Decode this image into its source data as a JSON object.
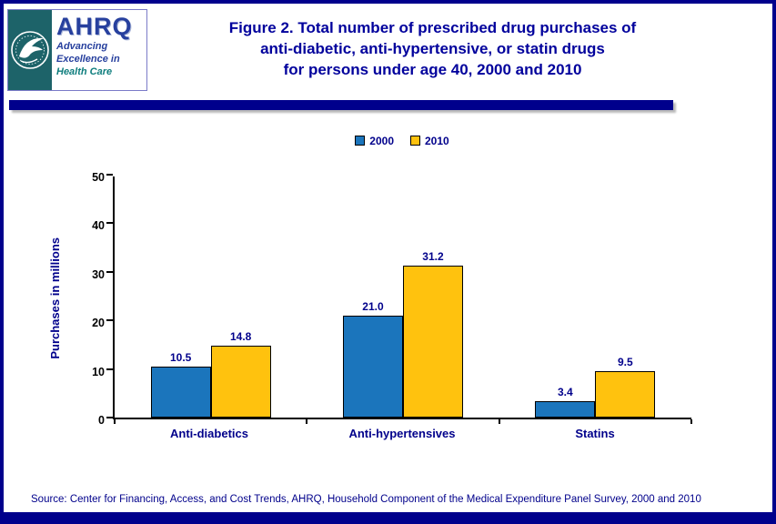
{
  "header": {
    "logo": {
      "org_abbrev": "AHRQ",
      "tagline": [
        "Advancing",
        "Excellence in",
        "Health Care"
      ]
    },
    "title_lines": [
      "Figure 2. Total number of prescribed drug purchases of",
      "anti-diabetic, anti-hypertensive, or statin drugs",
      "for persons under age 40, 2000 and 2010"
    ]
  },
  "chart_data": {
    "type": "bar",
    "categories": [
      "Anti-diabetics",
      "Anti-hypertensives",
      "Statins"
    ],
    "series": [
      {
        "name": "2000",
        "color": "#1B75BC",
        "values": [
          10.5,
          21.0,
          3.4
        ]
      },
      {
        "name": "2010",
        "color": "#FFC20E",
        "values": [
          14.8,
          31.2,
          9.5
        ]
      }
    ],
    "ylabel": "Purchases in millions",
    "ylim": [
      0,
      50
    ],
    "yticks": [
      0,
      10,
      20,
      30,
      40,
      50
    ],
    "legend_position": "top",
    "grid": false,
    "value_label_decimals": 1
  },
  "footer": {
    "source": "Source: Center for Financing, Access, and Cost Trends, AHRQ, Household Component of the Medical Expenditure Panel Survey, 2000 and 2010"
  },
  "colors": {
    "accent_navy": "#00008C",
    "title_text": "#00009C",
    "bar_2000": "#1B75BC",
    "bar_2010": "#FFC20E"
  }
}
